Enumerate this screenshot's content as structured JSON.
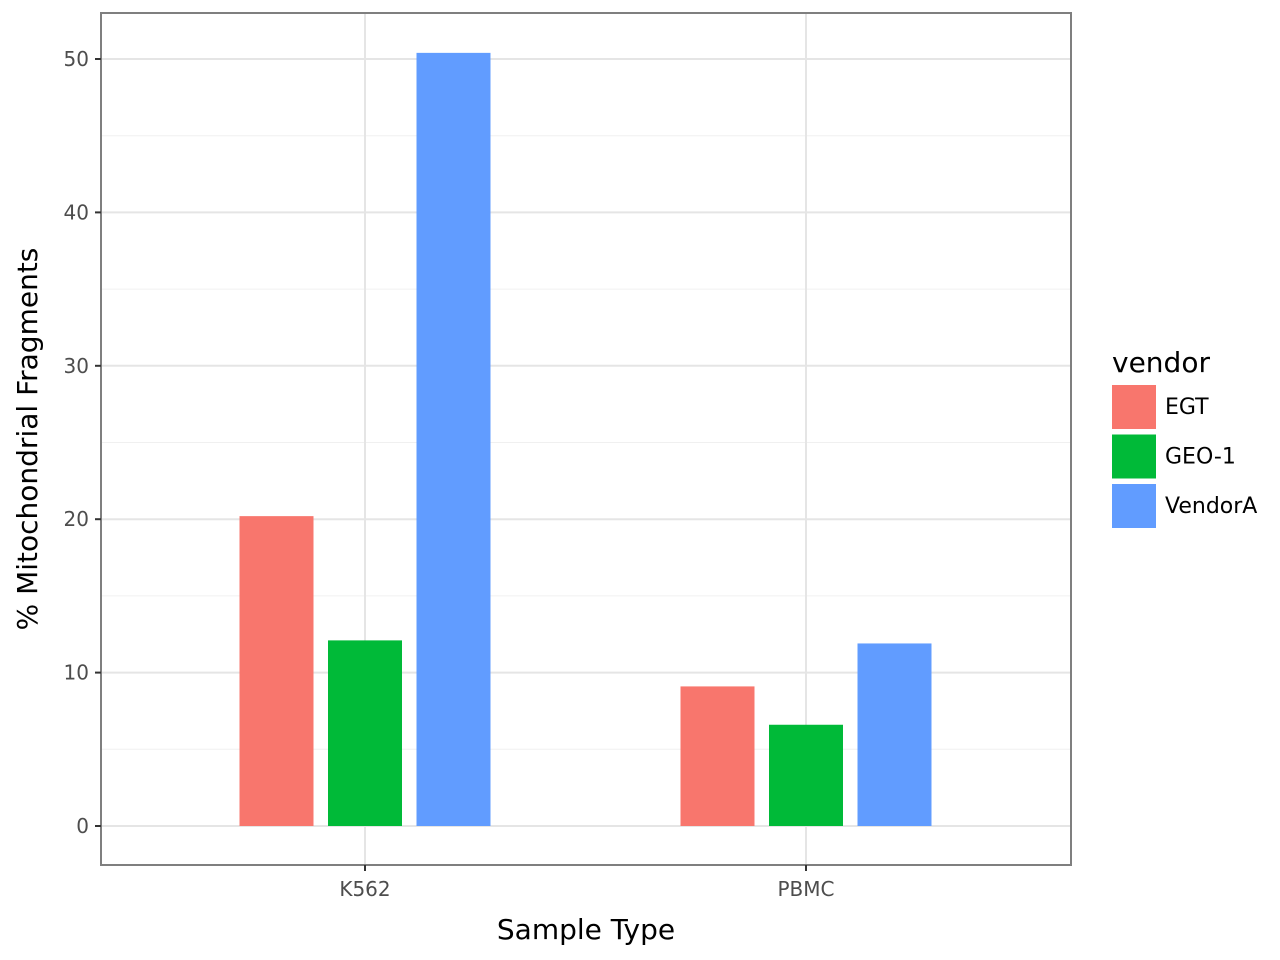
{
  "chart_data": {
    "type": "bar",
    "title": "",
    "xlabel": "Sample Type",
    "ylabel": "% Mitochondrial Fragments",
    "categories": [
      "K562",
      "PBMC"
    ],
    "series": [
      {
        "name": "EGT",
        "color": "#F8766D",
        "values": [
          20.2,
          9.1
        ]
      },
      {
        "name": "GEO-1",
        "color": "#00BA38",
        "values": [
          12.1,
          6.6
        ]
      },
      {
        "name": "VendorA",
        "color": "#619CFF",
        "values": [
          50.4,
          11.9
        ]
      }
    ],
    "ylim": [
      -2.5,
      52.9
    ],
    "yticks": [
      0,
      10,
      20,
      30,
      40,
      50
    ],
    "grid": true,
    "legend": {
      "title": "vendor",
      "placement": "right"
    }
  }
}
